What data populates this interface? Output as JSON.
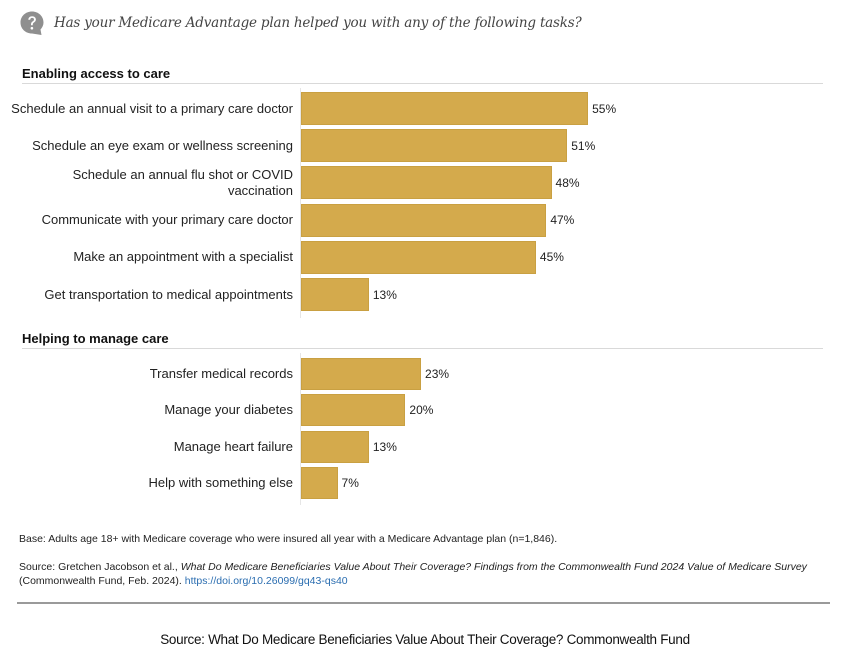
{
  "question": {
    "icon": "question-bubble-icon",
    "text": "Has your Medicare Advantage plan helped you with any of the following tasks?"
  },
  "chart_data": {
    "type": "bar",
    "orientation": "horizontal",
    "title": "Has your Medicare Advantage plan helped you with any of the following tasks?",
    "xlabel": "",
    "ylabel": "",
    "xlim": [
      0,
      100
    ],
    "grid": false,
    "unit": "%",
    "color": "#d4aa4c",
    "groups": [
      {
        "name": "Enabling access to care",
        "categories": [
          "Schedule an annual visit to a primary care doctor",
          "Schedule an eye exam or wellness screening",
          "Schedule an annual flu shot or COVID vaccination",
          "Communicate with your primary care doctor",
          "Make an appointment with a specialist",
          "Get transportation to medical appointments"
        ],
        "values": [
          55,
          51,
          48,
          47,
          45,
          13
        ],
        "value_labels": [
          "55%",
          "51%",
          "48%",
          "47%",
          "45%",
          "13%"
        ]
      },
      {
        "name": "Helping to manage care",
        "categories": [
          "Transfer medical records",
          "Manage your diabetes",
          "Manage heart failure",
          "Help with something else"
        ],
        "values": [
          23,
          20,
          13,
          7
        ],
        "value_labels": [
          "23%",
          "20%",
          "13%",
          "7%"
        ]
      }
    ]
  },
  "notes": {
    "base": "Base: Adults age 18+ with Medicare coverage who were insured all year with a Medicare Advantage plan (n=1,846).",
    "source_prefix": "Source: Gretchen Jacobson et al., ",
    "source_title": "What Do Medicare Beneficiaries Value About Their Coverage? Findings from the Commonwealth Fund 2024 Value of Medicare Survey",
    "source_suffix": " (Commonwealth Fund, Feb. 2024). ",
    "source_link": "https://doi.org/10.26099/gq43-qs40"
  },
  "footer": {
    "source": "Source: What Do Medicare Beneficiaries Value About Their Coverage? Commonwealth Fund"
  }
}
